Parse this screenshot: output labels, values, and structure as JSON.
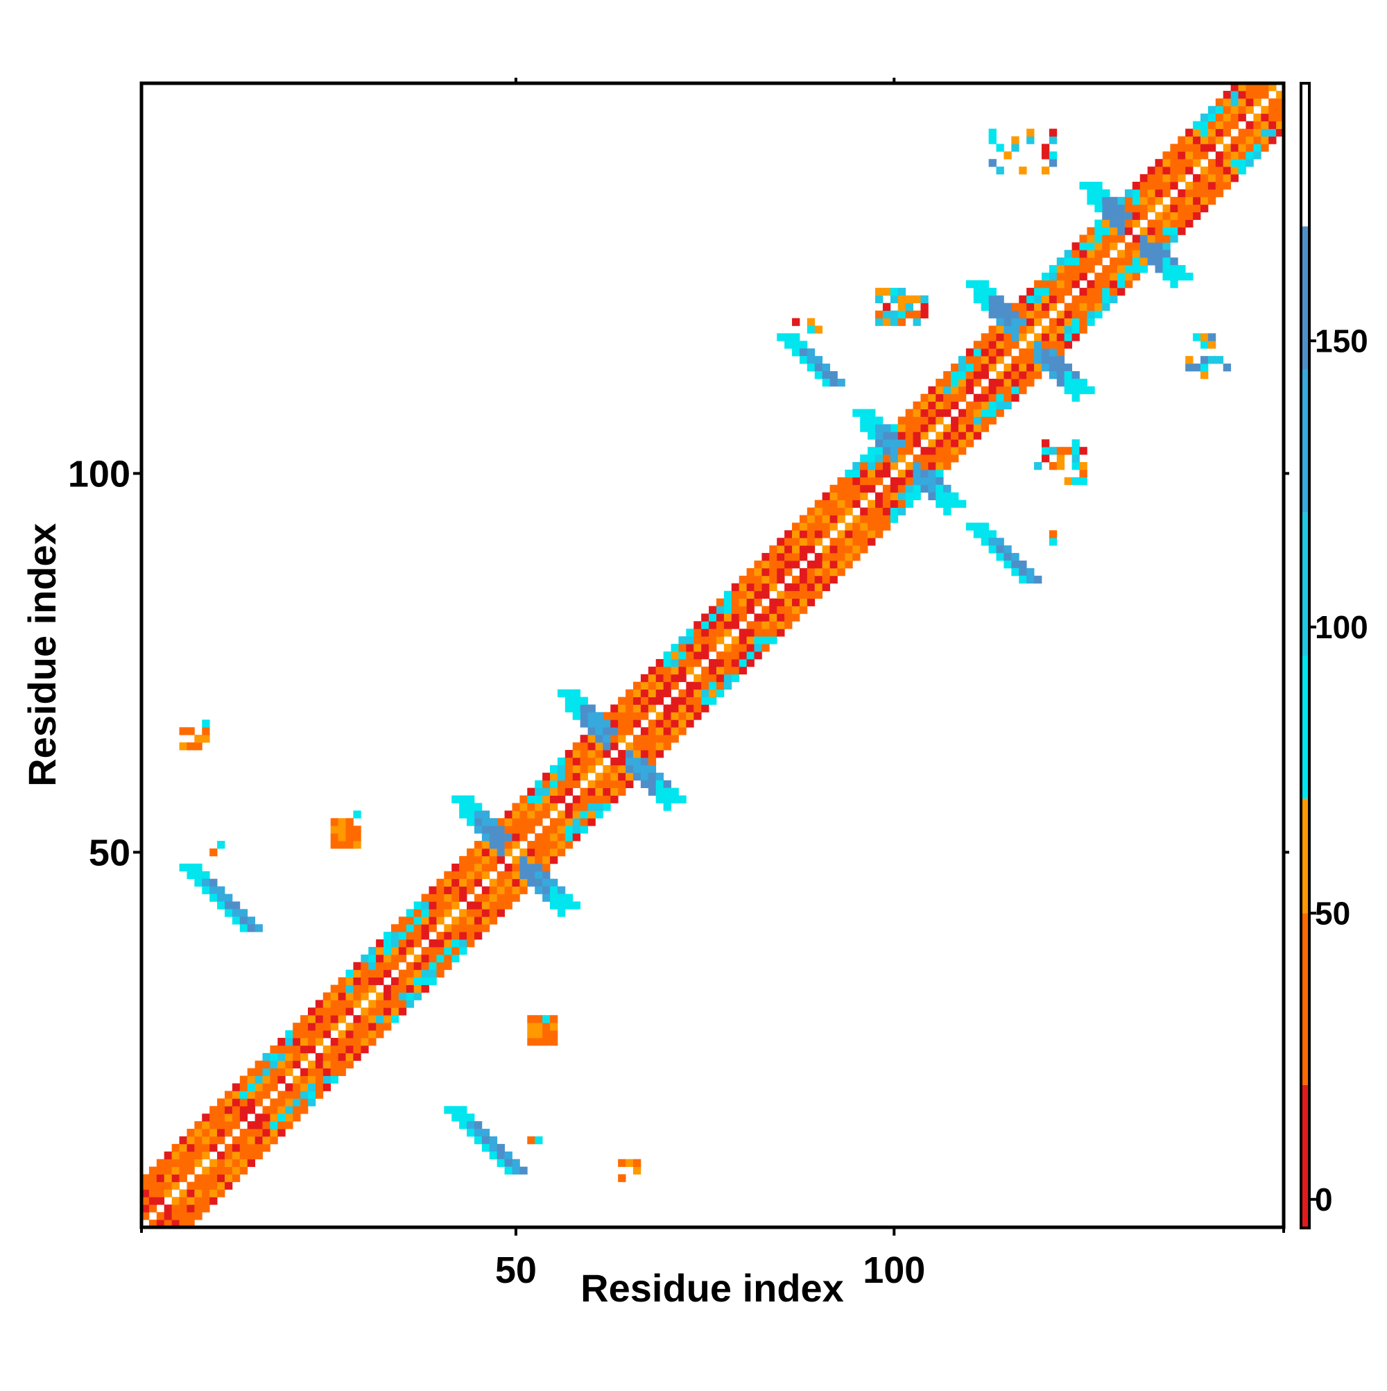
{
  "chart_data": {
    "type": "heatmap",
    "title": "",
    "xlabel": "Residue index",
    "ylabel": "Residue index",
    "x_range": [
      1,
      151
    ],
    "y_range": [
      1,
      151
    ],
    "x_ticks": [
      50,
      100
    ],
    "y_ticks": [
      50,
      100
    ],
    "grid": false,
    "legend": "colorbar-right",
    "colorbar": {
      "range": [
        -5,
        195
      ],
      "ticks": [
        0,
        50,
        100,
        150
      ],
      "bands": [
        {
          "from": -5,
          "to": 20,
          "color": "#e31a1c"
        },
        {
          "from": 20,
          "to": 50,
          "color": "#ff6a00"
        },
        {
          "from": 50,
          "to": 70,
          "color": "#ff9900"
        },
        {
          "from": 70,
          "to": 95,
          "color": "#00e5ee"
        },
        {
          "from": 95,
          "to": 120,
          "color": "#1fc8e4"
        },
        {
          "from": 120,
          "to": 145,
          "color": "#36a9dd"
        },
        {
          "from": 145,
          "to": 170,
          "color": "#4f8fc9"
        },
        {
          "from": 170,
          "to": 195,
          "color": "#ffffff"
        }
      ]
    },
    "palette": {
      "red": "#e31a1c",
      "orange": "#ff6a00",
      "amber": "#ff9900",
      "cyan": "#00e5ee",
      "sky": "#1fc8e4",
      "blue": "#36a9dd",
      "steel": "#4f8fc9"
    },
    "diagonal": {
      "from": 1,
      "to": 151,
      "width": 6,
      "pattern_note": "near-diagonal cells alternate red/orange/amber, with cyan segments at residues 14-20, 28-38, 52-56, 70-78, 94-100, 106-112, 118-132, 140-151"
    },
    "regions": [
      {
        "name": "antiparallel contacts around 48-53",
        "x": [
          41,
          55
        ],
        "y": [
          42,
          56
        ],
        "values": [
          150,
          160
        ]
      },
      {
        "name": "contacts around 60-67",
        "x": [
          56,
          68
        ],
        "y": [
          57,
          69
        ],
        "values": [
          150,
          160
        ]
      },
      {
        "name": "contacts around 98-104",
        "x": [
          96,
          106
        ],
        "y": [
          98,
          108
        ],
        "values": [
          150,
          160
        ]
      },
      {
        "name": "contacts around 114-121",
        "x": [
          111,
          123
        ],
        "y": [
          111,
          125
        ],
        "values": [
          150,
          160
        ]
      },
      {
        "name": "contacts around 126-136",
        "x": [
          126,
          139
        ],
        "y": [
          129,
          142
        ],
        "values": [
          110,
          160
        ]
      },
      {
        "name": "sheet 7-16 vs 41-48",
        "x": [
          7,
          16
        ],
        "y": [
          41,
          48
        ],
        "values": [
          130,
          150
        ]
      },
      {
        "name": "sheet 41-48 vs 7-16",
        "x": [
          41,
          48
        ],
        "y": [
          7,
          16
        ],
        "values": [
          130,
          150
        ]
      },
      {
        "name": "sheet 86-92 vs 113-118",
        "x": [
          86,
          92
        ],
        "y": [
          113,
          118
        ],
        "values": [
          130,
          150
        ]
      },
      {
        "name": "sheet 110-117 vs 87-93",
        "x": [
          110,
          117
        ],
        "y": [
          87,
          93
        ],
        "values": [
          130,
          150
        ]
      },
      {
        "name": "orange patch 26-29 vs 51-54",
        "x": [
          26,
          29
        ],
        "y": [
          51,
          54
        ],
        "values": [
          45,
          60
        ]
      },
      {
        "name": "orange patch 52-55 vs 25-28",
        "x": [
          52,
          55
        ],
        "y": [
          25,
          28
        ],
        "values": [
          45,
          60
        ]
      },
      {
        "name": "contacts 119-125 vs 99-104",
        "x": [
          119,
          125
        ],
        "y": [
          99,
          104
        ],
        "values": [
          10,
          100
        ]
      },
      {
        "name": "contacts 98-104 vs 120-124",
        "x": [
          98,
          104
        ],
        "y": [
          120,
          124
        ],
        "values": [
          10,
          100
        ]
      },
      {
        "name": "contacts 113-121 vs 140-145",
        "x": [
          113,
          121
        ],
        "y": [
          140,
          145
        ],
        "values": [
          60,
          150
        ]
      },
      {
        "name": "contacts 139-144 vs 113-118",
        "x": [
          139,
          144
        ],
        "y": [
          113,
          118
        ],
        "values": [
          60,
          150
        ]
      },
      {
        "name": "small contacts 6-9 vs 64-67",
        "x": [
          6,
          9
        ],
        "y": [
          64,
          67
        ],
        "values": [
          50,
          90
        ]
      },
      {
        "name": "small contacts 64-67 vs 6-9",
        "x": [
          64,
          67
        ],
        "y": [
          6,
          9
        ],
        "values": [
          50,
          90
        ]
      }
    ]
  }
}
